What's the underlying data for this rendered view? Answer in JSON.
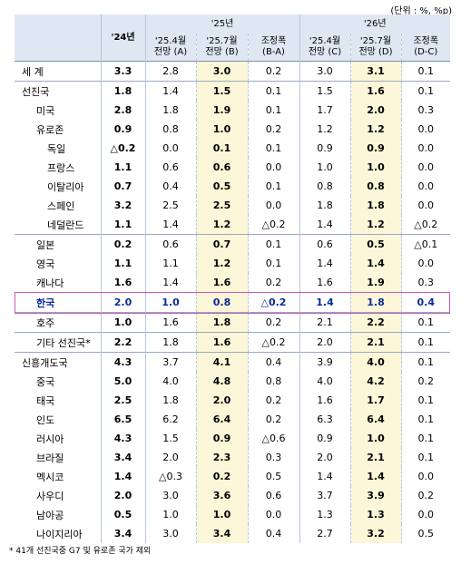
{
  "unit_note": "(단위 : %, %p)",
  "header": {
    "y24": "'24년",
    "y25": "'25년",
    "y26": "'26년",
    "c1": "'25.4월\n전망 (A)",
    "c2": "'25.7월\n전망 (B)",
    "c3": "조정폭\n(B-A)",
    "c4": "'25.4월\n전망 (C)",
    "c5": "'25.7월\n전망 (D)",
    "c6": "조정폭\n(D-C)"
  },
  "rows": [
    {
      "name": "세 계",
      "indent": 0,
      "v": [
        "3.3",
        "2.8",
        "3.0",
        "0.2",
        "3.0",
        "3.1",
        "0.1"
      ]
    },
    {
      "name": "선진국",
      "indent": 0,
      "v": [
        "1.8",
        "1.4",
        "1.5",
        "0.1",
        "1.5",
        "1.6",
        "0.1"
      ]
    },
    {
      "name": "미국",
      "indent": 1,
      "v": [
        "2.8",
        "1.8",
        "1.9",
        "0.1",
        "1.7",
        "2.0",
        "0.3"
      ]
    },
    {
      "name": "유로존",
      "indent": 1,
      "v": [
        "0.9",
        "0.8",
        "1.0",
        "0.2",
        "1.2",
        "1.2",
        "0.0"
      ]
    },
    {
      "name": "독일",
      "indent": 2,
      "v": [
        "△0.2",
        "0.0",
        "0.1",
        "0.1",
        "0.9",
        "0.9",
        "0.0"
      ]
    },
    {
      "name": "프랑스",
      "indent": 2,
      "v": [
        "1.1",
        "0.6",
        "0.6",
        "0.0",
        "1.0",
        "1.0",
        "0.0"
      ]
    },
    {
      "name": "이탈리아",
      "indent": 2,
      "v": [
        "0.7",
        "0.4",
        "0.5",
        "0.1",
        "0.8",
        "0.8",
        "0.0"
      ]
    },
    {
      "name": "스페인",
      "indent": 2,
      "v": [
        "3.2",
        "2.5",
        "2.5",
        "0.0",
        "1.8",
        "1.8",
        "0.0"
      ]
    },
    {
      "name": "네덜란드",
      "indent": 2,
      "v": [
        "1.1",
        "1.4",
        "1.2",
        "△0.2",
        "1.4",
        "1.2",
        "△0.2"
      ]
    },
    {
      "name": "일본",
      "indent": 1,
      "v": [
        "0.2",
        "0.6",
        "0.7",
        "0.1",
        "0.6",
        "0.5",
        "△0.1"
      ]
    },
    {
      "name": "영국",
      "indent": 1,
      "v": [
        "1.1",
        "1.1",
        "1.2",
        "0.1",
        "1.4",
        "1.4",
        "0.0"
      ]
    },
    {
      "name": "캐나다",
      "indent": 1,
      "v": [
        "1.6",
        "1.4",
        "1.6",
        "0.2",
        "1.6",
        "1.9",
        "0.3"
      ]
    },
    {
      "name": "한국",
      "indent": 1,
      "v": [
        "2.0",
        "1.0",
        "0.8",
        "△0.2",
        "1.4",
        "1.8",
        "0.4"
      ]
    },
    {
      "name": "호주",
      "indent": 1,
      "v": [
        "1.0",
        "1.6",
        "1.8",
        "0.2",
        "2.1",
        "2.2",
        "0.1"
      ]
    },
    {
      "name": "기타 선진국*",
      "indent": 1,
      "v": [
        "2.2",
        "1.8",
        "1.6",
        "△0.2",
        "2.0",
        "2.1",
        "0.1"
      ]
    },
    {
      "name": "신흥개도국",
      "indent": 0,
      "v": [
        "4.3",
        "3.7",
        "4.1",
        "0.4",
        "3.9",
        "4.0",
        "0.1"
      ]
    },
    {
      "name": "중국",
      "indent": 1,
      "v": [
        "5.0",
        "4.0",
        "4.8",
        "0.8",
        "4.0",
        "4.2",
        "0.2"
      ]
    },
    {
      "name": "태국",
      "indent": 1,
      "v": [
        "2.5",
        "1.8",
        "2.0",
        "0.2",
        "1.6",
        "1.7",
        "0.1"
      ]
    },
    {
      "name": "인도",
      "indent": 1,
      "v": [
        "6.5",
        "6.2",
        "6.4",
        "0.2",
        "6.3",
        "6.4",
        "0.1"
      ]
    },
    {
      "name": "러시아",
      "indent": 1,
      "v": [
        "4.3",
        "1.5",
        "0.9",
        "△0.6",
        "0.9",
        "1.0",
        "0.1"
      ]
    },
    {
      "name": "브라질",
      "indent": 1,
      "v": [
        "3.4",
        "2.0",
        "2.3",
        "0.3",
        "2.0",
        "2.1",
        "0.1"
      ]
    },
    {
      "name": "멕시코",
      "indent": 1,
      "v": [
        "1.4",
        "△0.3",
        "0.2",
        "0.5",
        "1.4",
        "1.4",
        "0.0"
      ]
    },
    {
      "name": "사우디",
      "indent": 1,
      "v": [
        "2.0",
        "3.0",
        "3.6",
        "0.6",
        "3.7",
        "3.9",
        "0.2"
      ]
    },
    {
      "name": "남아공",
      "indent": 1,
      "v": [
        "0.5",
        "1.0",
        "1.0",
        "0.0",
        "1.3",
        "1.3",
        "0.0"
      ]
    },
    {
      "name": "나이지리아",
      "indent": 1,
      "v": [
        "3.4",
        "3.0",
        "3.4",
        "0.4",
        "2.7",
        "3.2",
        "0.5"
      ]
    }
  ],
  "footnote": "* 41개 선진국중 G7 및 유로존 국가 제외",
  "highlight_color": "#fbf7d8",
  "korea_box_color": "#c45ab5"
}
